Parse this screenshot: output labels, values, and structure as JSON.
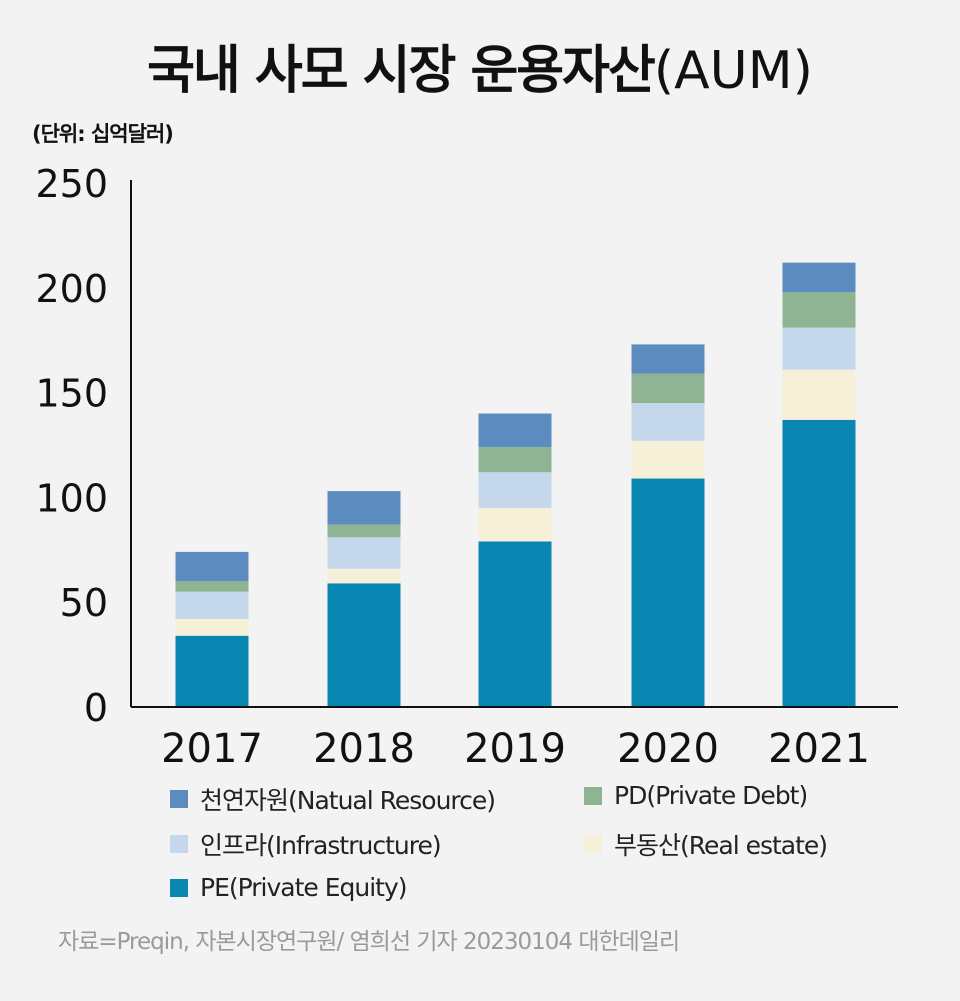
{
  "title_main": "국내 사모 시장 운용자산",
  "title_suffix": "(AUM)",
  "unit_label": "(단위: 십억달러)",
  "source": "자료=Preqin, 자본시장연구원/ 염희선 기자 20230104 대한데일리",
  "colors": {
    "background": "#f3f3f3",
    "axis": "#111111"
  },
  "chart_data": {
    "type": "bar",
    "stacked": true,
    "title": "국내 사모 시장 운용자산(AUM)",
    "ylabel": "(단위: 십억달러)",
    "xlabel": "",
    "ylim": [
      0,
      250
    ],
    "yticks": [
      0,
      50,
      100,
      150,
      200,
      250
    ],
    "categories": [
      "2017",
      "2018",
      "2019",
      "2020",
      "2021"
    ],
    "series": [
      {
        "key": "pe",
        "name": "PE(Private Equity)",
        "color": "#0a86b2",
        "values": [
          34,
          59,
          79,
          109,
          137
        ]
      },
      {
        "key": "re",
        "name": "부동산(Real estate)",
        "color": "#f6f0d8",
        "values": [
          8,
          7,
          16,
          18,
          24
        ]
      },
      {
        "key": "infra",
        "name": "인프라(Infrastructure)",
        "color": "#c5d8eb",
        "values": [
          13,
          15,
          17,
          18,
          20
        ]
      },
      {
        "key": "pd",
        "name": "PD(Private Debt)",
        "color": "#8fb494",
        "values": [
          5,
          6,
          12,
          14,
          17
        ]
      },
      {
        "key": "nr",
        "name": "천연자원(Natual Resource)",
        "color": "#5b8bbf",
        "values": [
          14,
          16,
          16,
          14,
          14
        ]
      }
    ],
    "legend": {
      "nr": "천연자원(Natual Resource)",
      "pd": "PD(Private Debt)",
      "infra": "인프라(Infrastructure)",
      "re": "부동산(Real estate)",
      "pe": "PE(Private Equity)"
    }
  }
}
